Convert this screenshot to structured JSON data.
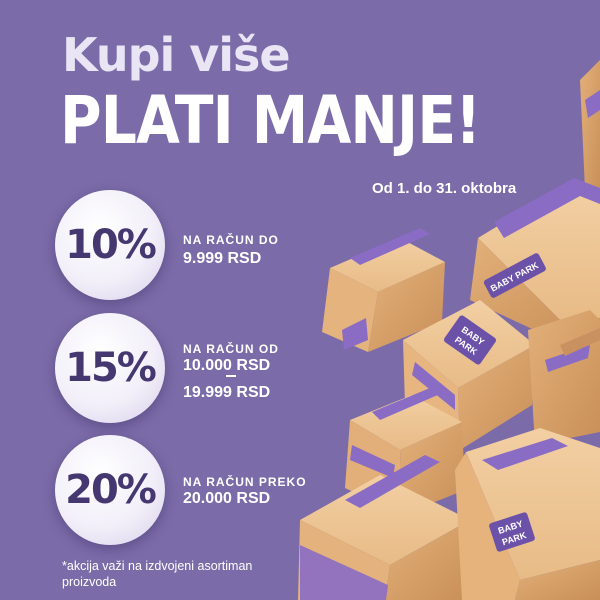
{
  "headline": {
    "line1": "Kupi više",
    "line2": "PLATI MANJE!"
  },
  "date_range": "Od 1. do 31. oktobra",
  "tiers": [
    {
      "discount": "10%",
      "caption": "NA RAČUN DO",
      "amount_1": "9.999 RSD",
      "amount_2": ""
    },
    {
      "discount": "15%",
      "caption": "NA RAČUN OD",
      "amount_1": "10.000 RSD",
      "amount_2": "19.999 RSD"
    },
    {
      "discount": "20%",
      "caption": "NA RAČUN PREKO",
      "amount_1": "20.000 RSD",
      "amount_2": ""
    }
  ],
  "footnote": "*akcija važi na izdvojeni asortiman proizvoda",
  "box_brand": {
    "line1": "BABY",
    "line2": "PARK",
    "full": "BABY PARK"
  },
  "colors": {
    "background": "#7b6ba8",
    "discount_text": "#453770",
    "box_cardboard": "#e3b582",
    "box_tape": "#8a6cc4"
  }
}
